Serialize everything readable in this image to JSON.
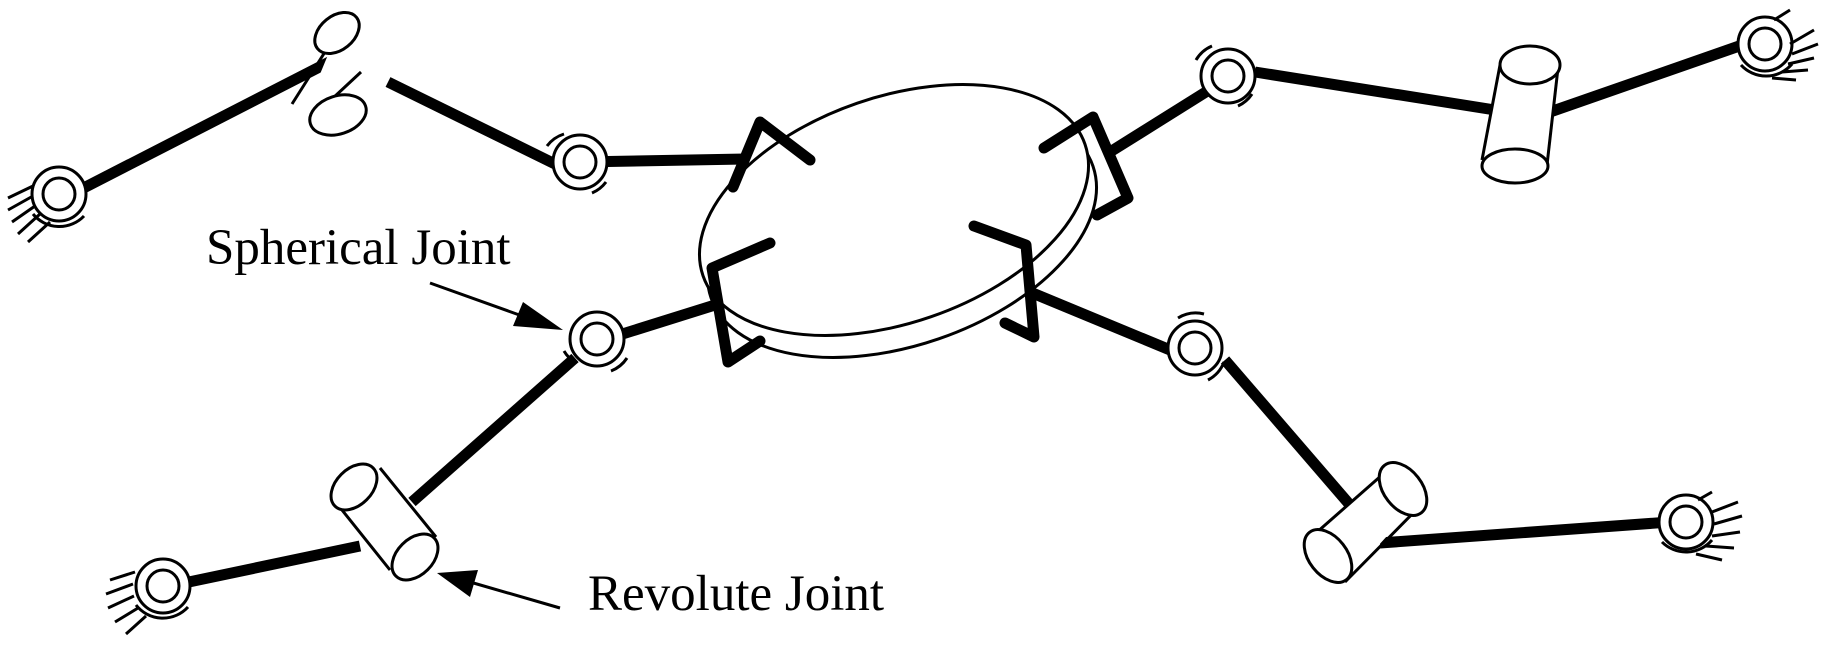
{
  "labels": {
    "spherical_joint": "Spherical Joint",
    "revolute_joint": "Revolute Joint"
  },
  "colors": {
    "ink": "#000000",
    "background": "#ffffff"
  },
  "legs": [
    {
      "id": "upper-left"
    },
    {
      "id": "lower-left"
    },
    {
      "id": "upper-right"
    },
    {
      "id": "lower-right"
    }
  ]
}
